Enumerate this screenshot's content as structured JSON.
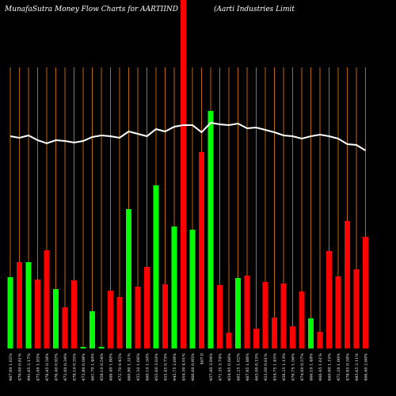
{
  "chart_data": {
    "type": "bar-line",
    "title": "MunafaSutra  Money Flow  Charts for AARTIIND",
    "subtitle": "(Aarti  Industries Limit",
    "categories": [
      "467.00 1.02%",
      "479.00 0.81%",
      "491.05 2.17%",
      "473.00 1.93%",
      "476.45 0.59%",
      "476.40 0.92%",
      "472.60 0.34%",
      "478.10 0.35%",
      "473.80 0.08%",
      "461.70 1.40%",
      "458.10 0.54%",
      "466.40 1.80%",
      "472.70 0.45%",
      "460.90 1.31%",
      "452.50 1.66%",
      "460.10 1.50%",
      "455.60 3.03%",
      "455.45 0.73%",
      "445.75 2.69%",
      "454.30 4.01%",
      "466.60 0.95%",
      "467.0",
      "457.00 3.94%",
      "471.35 5.74%",
      "454.95 0.66%",
      "462.25 1.02%",
      "467.95 1.88%",
      "463.00 0.15%",
      "453.00 0.61%",
      "454.75 1.45%",
      "456.25 1.13%",
      "476.75 1.56%",
      "474.60 0.57%",
      "466.10 1.48%",
      "466.45 1.61%",
      "460.90 1.15%",
      "471.20 1.00%",
      "478.85 0.58%",
      "483.65 2.11%",
      "466.40 2.60%"
    ],
    "ylim": [
      0,
      440
    ],
    "series": [
      {
        "type": "bar",
        "values": [
          90,
          109,
          109,
          87,
          124,
          75,
          52,
          86,
          2,
          47,
          2,
          73,
          65,
          176,
          78,
          103,
          206,
          81,
          154,
          445,
          150,
          248,
          300,
          80,
          20,
          89,
          92,
          25,
          84,
          39,
          82,
          28,
          72,
          38,
          21,
          123,
          91,
          161,
          100,
          141
        ],
        "colors": [
          "#0f0",
          "#f00",
          "#0f0",
          "#f00",
          "#f00",
          "#0f0",
          "#f00",
          "#f00",
          "#0f0",
          "#0f0",
          "#0f0",
          "#f00",
          "#f00",
          "#0f0",
          "#f00",
          "#f00",
          "#0f0",
          "#f00",
          "#0f0",
          "#f00",
          "#0f0",
          "#f00",
          "#0f0",
          "#f00",
          "#f00",
          "#0f0",
          "#f00",
          "#f00",
          "#f00",
          "#f00",
          "#f00",
          "#f00",
          "#f00",
          "#0f0",
          "#f00",
          "#f00",
          "#f00",
          "#f00",
          "#f00",
          "#f00"
        ]
      },
      {
        "type": "line",
        "color": "#ffffff",
        "values": [
          268,
          266,
          269,
          263,
          259,
          263,
          262,
          260,
          262,
          267,
          269,
          268,
          266,
          274,
          271,
          268,
          277,
          274,
          280,
          282,
          282,
          273,
          285,
          283,
          282,
          284,
          278,
          279,
          276,
          273,
          269,
          268,
          265,
          268,
          270,
          268,
          265,
          258,
          257,
          250
        ]
      }
    ]
  }
}
